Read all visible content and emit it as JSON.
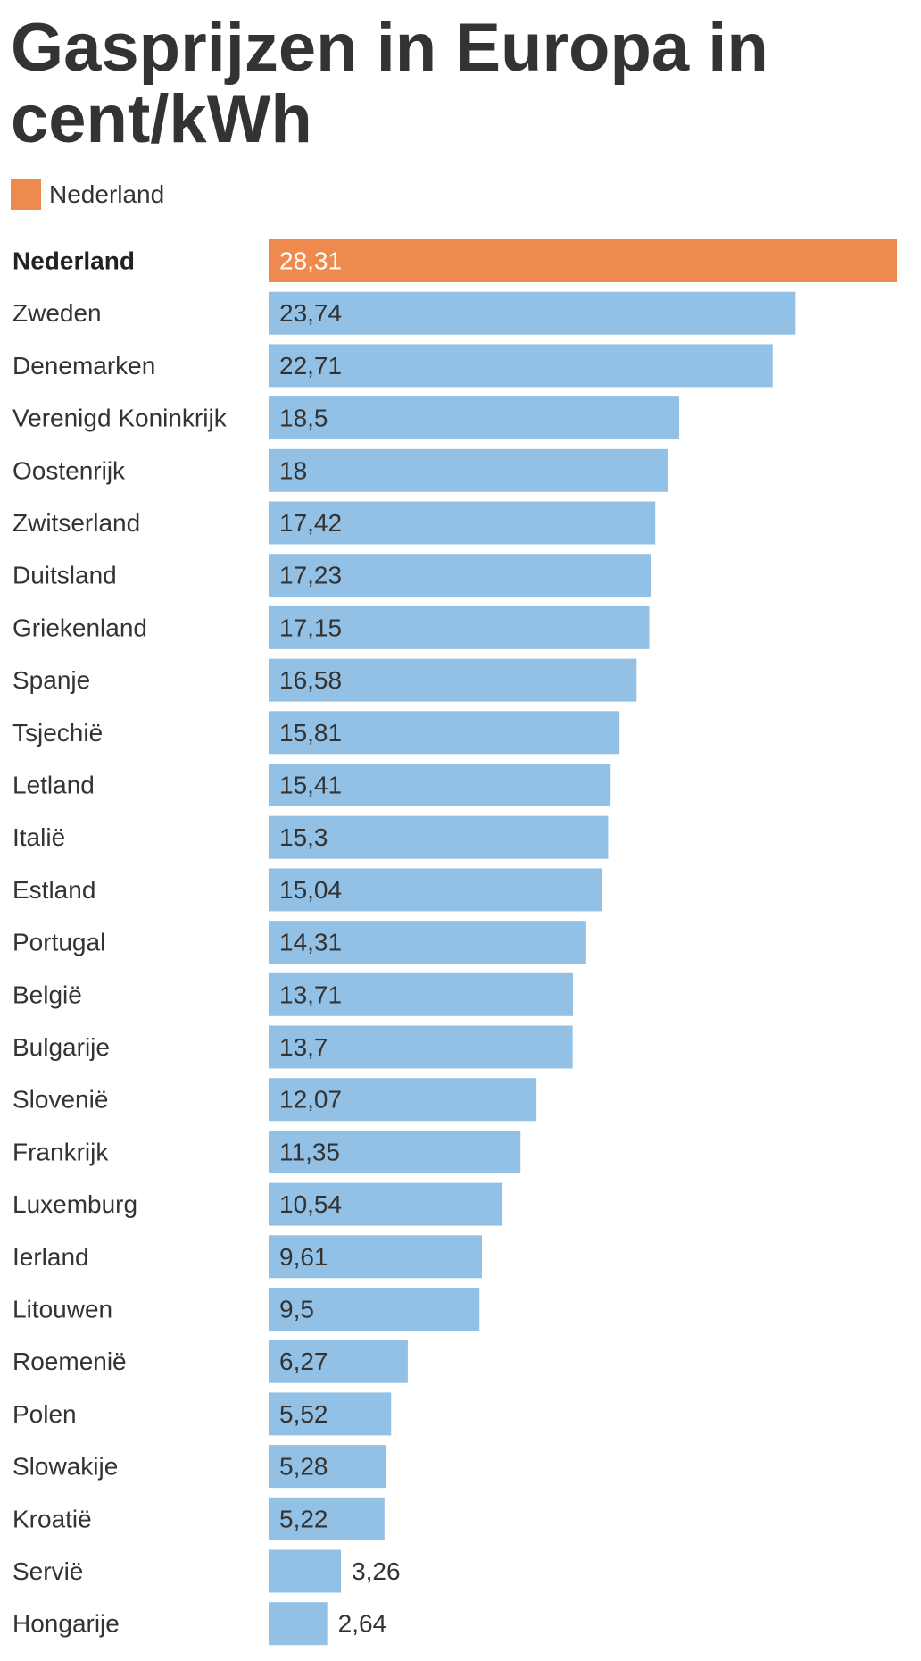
{
  "chart_data": {
    "type": "bar",
    "orientation": "horizontal",
    "title": "Gasprijzen in Europa in cent/kWh",
    "legend": [
      {
        "label": "Nederland",
        "color": "#ef8a4e"
      }
    ],
    "highlight_category": "Nederland",
    "colors": {
      "highlight": "#ef8a4e",
      "default": "#93c1e6"
    },
    "categories": [
      "Nederland",
      "Zweden",
      "Denemarken",
      "Verenigd Koninkrijk",
      "Oostenrijk",
      "Zwitserland",
      "Duitsland",
      "Griekenland",
      "Spanje",
      "Tsjechië",
      "Letland",
      "Italië",
      "Estland",
      "Portugal",
      "België",
      "Bulgarije",
      "Slovenië",
      "Frankrijk",
      "Luxemburg",
      "Ierland",
      "Litouwen",
      "Roemenië",
      "Polen",
      "Slowakije",
      "Kroatië",
      "Servië",
      "Hongarije"
    ],
    "values": [
      28.31,
      23.74,
      22.71,
      18.5,
      18,
      17.42,
      17.23,
      17.15,
      16.58,
      15.81,
      15.41,
      15.3,
      15.04,
      14.31,
      13.71,
      13.7,
      12.07,
      11.35,
      10.54,
      9.61,
      9.5,
      6.27,
      5.52,
      5.28,
      5.22,
      3.26,
      2.64
    ],
    "value_labels": [
      "28,31",
      "23,74",
      "22,71",
      "18,5",
      "18",
      "17,42",
      "17,23",
      "17,15",
      "16,58",
      "15,81",
      "15,41",
      "15,3",
      "15,04",
      "14,31",
      "13,71",
      "13,7",
      "12,07",
      "11,35",
      "10,54",
      "9,61",
      "9,5",
      "6,27",
      "5,52",
      "5,28",
      "5,22",
      "3,26",
      "2,64"
    ],
    "xlim": [
      0,
      28.31
    ],
    "grid": false,
    "legend_position": "top-left"
  }
}
